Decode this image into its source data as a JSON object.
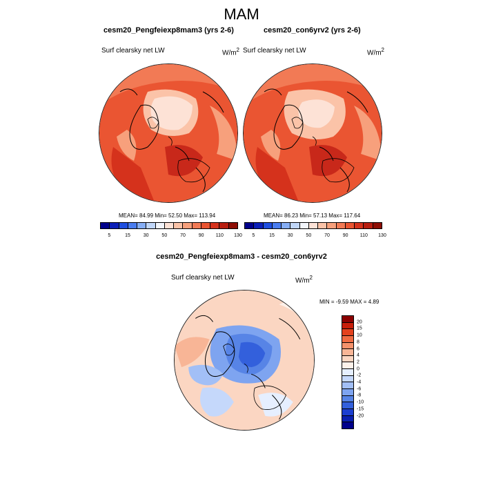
{
  "figure": {
    "title": "MAM"
  },
  "panels": [
    {
      "title": "cesm20_Pengfeiexp8mam3 (yrs 2-6)",
      "left_label": "Surf clearsky net LW",
      "units": "W/m",
      "units_sup": "2",
      "stats": "MEAN=  84.99  Min=  52.50  Max= 113.94"
    },
    {
      "title": "cesm20_con6yrv2 (yrs 2-6)",
      "left_label": "Surf clearsky net LW",
      "units": "W/m",
      "units_sup": "2",
      "stats": "MEAN=  86.23  Min=  57.13  Max= 117.64"
    }
  ],
  "diff_panel": {
    "title": "cesm20_Pengfeiexp8mam3 - cesm20_con6yrv2",
    "left_label": "Surf clearsky net LW",
    "units": "W/m",
    "units_sup": "2",
    "stats": "MIN =  -9.59 MAX =   4.89"
  },
  "abs_colorbar": {
    "colors": [
      "#00008b",
      "#0b1fb8",
      "#1f4fe0",
      "#4a7df0",
      "#86aef5",
      "#c0d6f8",
      "#f2f5fb",
      "#fde2d6",
      "#fbc3a8",
      "#f7a07c",
      "#f27a55",
      "#ea5532",
      "#d5321c",
      "#b81e10",
      "#8e0e05"
    ],
    "tick_labels": [
      "5",
      "15",
      "30",
      "50",
      "70",
      "90",
      "110",
      "130"
    ]
  },
  "diff_colorbar": {
    "colors": [
      "#8b0000",
      "#c81e0a",
      "#e3421e",
      "#f06b42",
      "#f5926c",
      "#f8b596",
      "#fbd6c2",
      "#fdf1ea",
      "#e6efff",
      "#c5d8fb",
      "#a2bff6",
      "#7ea4f0",
      "#5784e6",
      "#3360dc",
      "#1c3fd0",
      "#0a20b0",
      "#00008b"
    ],
    "tick_labels": [
      "20",
      "15",
      "10",
      "8",
      "6",
      "4",
      "2",
      "0",
      "-2",
      "-4",
      "-6",
      "-8",
      "-10",
      "-15",
      "-20"
    ]
  },
  "chart_data": [
    {
      "type": "heatmap",
      "title": "cesm20_Pengfeiexp8mam3 (yrs 2-6)",
      "variable": "Surf clearsky net LW",
      "units": "W/m2",
      "projection": "north polar stereographic",
      "mean": 84.99,
      "min": 52.5,
      "max": 113.94,
      "levels": [
        5,
        15,
        30,
        50,
        70,
        90,
        110,
        130
      ]
    },
    {
      "type": "heatmap",
      "title": "cesm20_con6yrv2 (yrs 2-6)",
      "variable": "Surf clearsky net LW",
      "units": "W/m2",
      "projection": "north polar stereographic",
      "mean": 86.23,
      "min": 57.13,
      "max": 117.64,
      "levels": [
        5,
        15,
        30,
        50,
        70,
        90,
        110,
        130
      ]
    },
    {
      "type": "heatmap",
      "title": "cesm20_Pengfeiexp8mam3 - cesm20_con6yrv2",
      "variable": "Surf clearsky net LW",
      "units": "W/m2",
      "projection": "north polar stereographic",
      "min": -9.59,
      "max": 4.89,
      "levels": [
        -20,
        -15,
        -10,
        -8,
        -6,
        -4,
        -2,
        0,
        2,
        4,
        6,
        8,
        10,
        15,
        20
      ]
    }
  ]
}
